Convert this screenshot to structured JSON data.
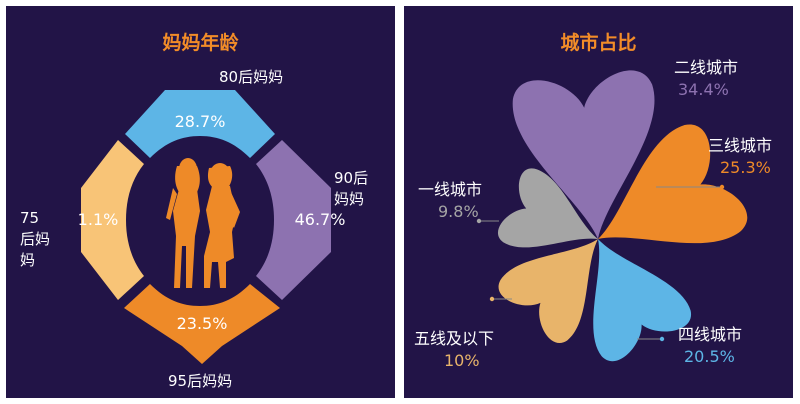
{
  "chart_data": [
    {
      "type": "donut",
      "title": "妈妈年龄",
      "slices": [
        {
          "label": "80后妈妈",
          "value": 28.7,
          "display": "28.7%",
          "color": "#5DB5E6"
        },
        {
          "label": "90后妈妈",
          "value": 46.7,
          "display": "46.7%",
          "color": "#8D72B0"
        },
        {
          "label": "95后妈妈",
          "value": 23.5,
          "display": "23.5%",
          "color": "#EE8A28"
        },
        {
          "label": "75后妈妈",
          "value": 1.1,
          "display": "1.1%",
          "color": "#F8C477"
        }
      ],
      "center_icon": "two-women-silhouette-icon"
    },
    {
      "type": "pie",
      "title": "城市占比",
      "slices": [
        {
          "label": "二线城市",
          "value": 34.4,
          "display": "34.4%",
          "color": "#8D72B0"
        },
        {
          "label": "三线城市",
          "value": 25.3,
          "display": "25.3%",
          "color": "#EE8A28"
        },
        {
          "label": "四线城市",
          "value": 20.5,
          "display": "20.5%",
          "color": "#5DB5E6"
        },
        {
          "label": "五线及以下",
          "value": 10,
          "display": "10%",
          "color": "#E8B46A"
        },
        {
          "label": "一线城市",
          "value": 9.8,
          "display": "9.8%",
          "color": "#A5A5A5"
        }
      ]
    }
  ],
  "colors": {
    "background": "#221447",
    "title": "#F28C28",
    "label": "#FFFFFF"
  }
}
